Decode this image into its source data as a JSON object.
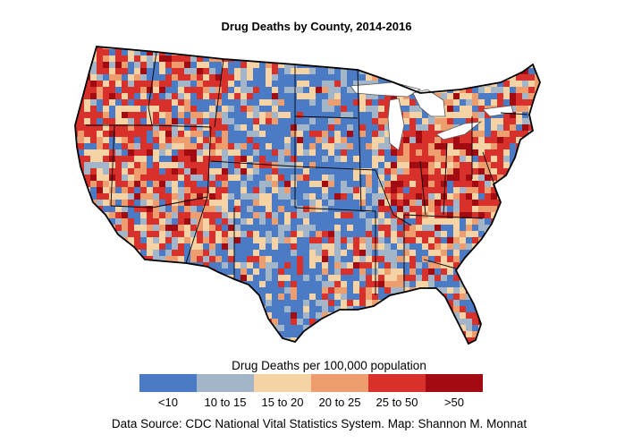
{
  "title": "Drug Deaths by County, 2014-2016",
  "legend": {
    "title": "Drug Deaths per 100,000 population",
    "bins": [
      {
        "label": "<10",
        "color": "#4a7bc4"
      },
      {
        "label": "10 to 15",
        "color": "#a3b6c9"
      },
      {
        "label": "15 to 20",
        "color": "#f6d3a4"
      },
      {
        "label": "20 to 25",
        "color": "#ee9d6f"
      },
      {
        "label": "25 to 50",
        "color": "#d8302b"
      },
      {
        "label": ">50",
        "color": "#a30b12"
      }
    ]
  },
  "source": "Data Source: CDC National Vital Statistics System. Map: Shannon M. Monnat",
  "colors": {
    "state_border": "#000000",
    "great_lakes": "#ffffff"
  }
}
